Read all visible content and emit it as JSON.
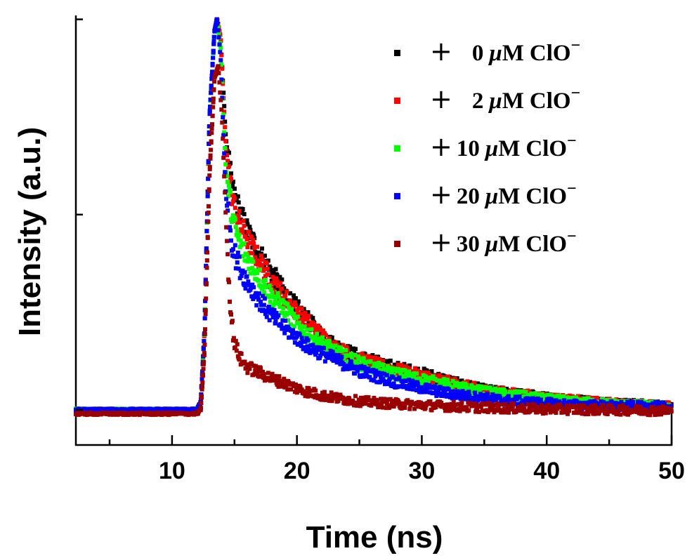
{
  "chart_data": {
    "type": "scatter",
    "xlabel": "Time (ns)",
    "ylabel": "Intensity (a.u.)",
    "xlim": [
      2.3,
      50
    ],
    "ylim": [
      -0.09,
      1.01
    ],
    "xticks": [
      10,
      20,
      30,
      40,
      50
    ],
    "y_tick_labels": false,
    "legend_position": "top-right",
    "series": [
      {
        "name": "+ 0 μM ClO⁻",
        "legend_plain": "+  0",
        "color": "#000000",
        "baseline": 0.0,
        "onset": 12.3,
        "peak_time": 13.6,
        "points": [
          [
            2.3,
            0.0
          ],
          [
            10,
            0.0
          ],
          [
            12,
            0.0
          ],
          [
            12.3,
            0.02
          ],
          [
            12.6,
            0.2
          ],
          [
            13.0,
            0.75
          ],
          [
            13.4,
            0.97
          ],
          [
            13.6,
            1.0
          ],
          [
            13.9,
            0.95
          ],
          [
            14.3,
            0.7
          ],
          [
            14.8,
            0.57
          ],
          [
            15.0,
            0.55
          ],
          [
            15.5,
            0.5
          ],
          [
            16,
            0.46
          ],
          [
            17,
            0.4
          ],
          [
            18,
            0.35
          ],
          [
            19,
            0.3
          ],
          [
            20,
            0.26
          ],
          [
            21,
            0.225
          ],
          [
            22,
            0.19
          ],
          [
            23,
            0.165
          ],
          [
            24,
            0.15
          ],
          [
            25,
            0.135
          ],
          [
            26,
            0.125
          ],
          [
            27,
            0.115
          ],
          [
            28,
            0.107
          ],
          [
            29,
            0.1
          ],
          [
            30,
            0.092
          ],
          [
            31,
            0.085
          ],
          [
            32,
            0.075
          ],
          [
            33,
            0.065
          ],
          [
            34,
            0.058
          ],
          [
            35,
            0.05
          ],
          [
            37,
            0.042
          ],
          [
            39,
            0.035
          ],
          [
            40,
            0.03
          ],
          [
            42,
            0.025
          ],
          [
            45,
            0.018
          ],
          [
            48,
            0.012
          ],
          [
            50,
            0.008
          ]
        ]
      },
      {
        "name": "+ 2 μM ClO⁻",
        "legend_plain": "+  2",
        "color": "#ff0000",
        "baseline": 0.0,
        "onset": 12.3,
        "peak_time": 13.6,
        "points": [
          [
            2.3,
            0.0
          ],
          [
            10,
            0.0
          ],
          [
            12,
            0.0
          ],
          [
            12.3,
            0.02
          ],
          [
            12.6,
            0.2
          ],
          [
            13.0,
            0.75
          ],
          [
            13.4,
            0.97
          ],
          [
            13.6,
            1.0
          ],
          [
            13.9,
            0.95
          ],
          [
            14.3,
            0.68
          ],
          [
            14.8,
            0.55
          ],
          [
            15.0,
            0.52
          ],
          [
            15.5,
            0.47
          ],
          [
            16,
            0.44
          ],
          [
            17,
            0.38
          ],
          [
            18,
            0.33
          ],
          [
            19,
            0.29
          ],
          [
            20,
            0.25
          ],
          [
            21,
            0.22
          ],
          [
            22,
            0.19
          ],
          [
            23,
            0.16
          ],
          [
            24,
            0.145
          ],
          [
            25,
            0.13
          ],
          [
            26,
            0.12
          ],
          [
            27,
            0.11
          ],
          [
            28,
            0.102
          ],
          [
            29,
            0.095
          ],
          [
            30,
            0.087
          ],
          [
            31,
            0.08
          ],
          [
            32,
            0.072
          ],
          [
            33,
            0.064
          ],
          [
            34,
            0.057
          ],
          [
            35,
            0.05
          ],
          [
            37,
            0.042
          ],
          [
            39,
            0.035
          ],
          [
            40,
            0.03
          ],
          [
            42,
            0.024
          ],
          [
            45,
            0.017
          ],
          [
            48,
            0.011
          ],
          [
            50,
            0.008
          ]
        ]
      },
      {
        "name": "+ 10 μM ClO⁻",
        "legend_plain": "+ 10",
        "color": "#00ff00",
        "baseline": 0.0,
        "onset": 12.3,
        "peak_time": 13.6,
        "points": [
          [
            2.3,
            0.0
          ],
          [
            10,
            0.0
          ],
          [
            12,
            0.0
          ],
          [
            12.3,
            0.02
          ],
          [
            12.6,
            0.2
          ],
          [
            13.0,
            0.75
          ],
          [
            13.4,
            0.97
          ],
          [
            13.6,
            1.0
          ],
          [
            13.9,
            0.93
          ],
          [
            14.3,
            0.62
          ],
          [
            14.8,
            0.5
          ],
          [
            15.0,
            0.47
          ],
          [
            15.5,
            0.42
          ],
          [
            16,
            0.39
          ],
          [
            17,
            0.34
          ],
          [
            18,
            0.29
          ],
          [
            19,
            0.26
          ],
          [
            20,
            0.22
          ],
          [
            21,
            0.19
          ],
          [
            22,
            0.17
          ],
          [
            23,
            0.15
          ],
          [
            24,
            0.135
          ],
          [
            25,
            0.12
          ],
          [
            26,
            0.11
          ],
          [
            27,
            0.1
          ],
          [
            28,
            0.092
          ],
          [
            29,
            0.085
          ],
          [
            30,
            0.078
          ],
          [
            31,
            0.071
          ],
          [
            32,
            0.064
          ],
          [
            33,
            0.057
          ],
          [
            34,
            0.051
          ],
          [
            35,
            0.046
          ],
          [
            37,
            0.038
          ],
          [
            39,
            0.031
          ],
          [
            40,
            0.027
          ],
          [
            42,
            0.021
          ],
          [
            45,
            0.015
          ],
          [
            48,
            0.01
          ],
          [
            50,
            0.008
          ]
        ]
      },
      {
        "name": "+ 20 μM ClO⁻",
        "legend_plain": "+ 20",
        "color": "#0000ff",
        "baseline": 0.0,
        "onset": 12.3,
        "peak_time": 13.6,
        "points": [
          [
            2.3,
            0.0
          ],
          [
            10,
            0.0
          ],
          [
            12,
            0.0
          ],
          [
            12.3,
            0.02
          ],
          [
            12.6,
            0.2
          ],
          [
            13.0,
            0.75
          ],
          [
            13.4,
            0.97
          ],
          [
            13.6,
            1.0
          ],
          [
            13.9,
            0.9
          ],
          [
            14.3,
            0.55
          ],
          [
            14.8,
            0.43
          ],
          [
            15.0,
            0.4
          ],
          [
            15.5,
            0.36
          ],
          [
            16,
            0.33
          ],
          [
            17,
            0.28
          ],
          [
            18,
            0.24
          ],
          [
            19,
            0.21
          ],
          [
            20,
            0.185
          ],
          [
            21,
            0.16
          ],
          [
            22,
            0.145
          ],
          [
            23,
            0.13
          ],
          [
            24,
            0.115
          ],
          [
            25,
            0.1
          ],
          [
            26,
            0.09
          ],
          [
            27,
            0.08
          ],
          [
            28,
            0.07
          ],
          [
            29,
            0.063
          ],
          [
            30,
            0.056
          ],
          [
            31,
            0.049
          ],
          [
            32,
            0.043
          ],
          [
            33,
            0.038
          ],
          [
            34,
            0.034
          ],
          [
            35,
            0.03
          ],
          [
            37,
            0.024
          ],
          [
            39,
            0.019
          ],
          [
            40,
            0.017
          ],
          [
            42,
            0.013
          ],
          [
            45,
            0.01
          ],
          [
            48,
            0.008
          ],
          [
            50,
            0.007
          ]
        ]
      },
      {
        "name": "+ 30 μM ClO⁻",
        "legend_plain": "+ 30",
        "color": "#990000",
        "baseline": -0.01,
        "onset": 12.3,
        "peak_time": 13.7,
        "points": [
          [
            2.3,
            -0.01
          ],
          [
            10,
            -0.01
          ],
          [
            12,
            -0.01
          ],
          [
            12.3,
            0.0
          ],
          [
            12.6,
            0.15
          ],
          [
            13.0,
            0.6
          ],
          [
            13.4,
            0.85
          ],
          [
            13.7,
            0.88
          ],
          [
            14.0,
            0.75
          ],
          [
            14.3,
            0.5
          ],
          [
            14.6,
            0.3
          ],
          [
            14.8,
            0.22
          ],
          [
            15.0,
            0.17
          ],
          [
            15.5,
            0.13
          ],
          [
            16,
            0.11
          ],
          [
            17,
            0.095
          ],
          [
            18,
            0.08
          ],
          [
            19,
            0.068
          ],
          [
            20,
            0.055
          ],
          [
            21,
            0.045
          ],
          [
            22,
            0.037
          ],
          [
            23,
            0.031
          ],
          [
            24,
            0.026
          ],
          [
            25,
            0.022
          ],
          [
            27,
            0.017
          ],
          [
            30,
            0.012
          ],
          [
            33,
            0.008
          ],
          [
            36,
            0.005
          ],
          [
            40,
            0.002
          ],
          [
            45,
            0.0
          ],
          [
            50,
            -0.002
          ]
        ]
      }
    ]
  }
}
